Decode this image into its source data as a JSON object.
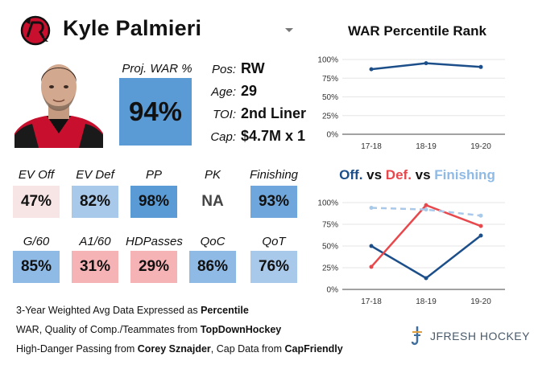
{
  "header": {
    "player_name": "Kyle Palmieri",
    "team_logo_icon": "new-jersey-devils-logo-icon",
    "dropdown_icon": "caret-down-icon"
  },
  "projected_war": {
    "label": "Proj. WAR %",
    "value": "94%",
    "color": "#5b9bd5"
  },
  "info": [
    {
      "label": "Pos:",
      "value": "RW"
    },
    {
      "label": "Age:",
      "value": "29"
    },
    {
      "label": "TOI:",
      "value": "2nd Liner"
    },
    {
      "label": "Cap:",
      "value": "$4.7M x 1"
    }
  ],
  "metrics_row1": [
    {
      "label": "EV Off",
      "value": "47%",
      "color": "#f7e4e4"
    },
    {
      "label": "EV Def",
      "value": "82%",
      "color": "#a9c9ea"
    },
    {
      "label": "PP",
      "value": "98%",
      "color": "#5b9bd5"
    },
    {
      "label": "PK",
      "value": "NA",
      "color": "#ffffff"
    },
    {
      "label": "Finishing",
      "value": "93%",
      "color": "#6fa6db"
    }
  ],
  "metrics_row2": [
    {
      "label": "G/60",
      "value": "85%",
      "color": "#8fbae6"
    },
    {
      "label": "A1/60",
      "value": "31%",
      "color": "#f6b3b6"
    },
    {
      "label": "HDPasses",
      "value": "29%",
      "color": "#f6b3b6"
    },
    {
      "label": "QoC",
      "value": "86%",
      "color": "#8fbae6"
    },
    {
      "label": "QoT",
      "value": "76%",
      "color": "#a9c9ea"
    }
  ],
  "footer": {
    "line1_text": "3-Year Weighted Avg Data Expressed as ",
    "line1_bold": "Percentile",
    "line2_text": "WAR, Quality of Comp./Teammates from ",
    "line2_bold": "TopDownHockey",
    "line3_text1": "High-Danger Passing from ",
    "line3_bold1": "Corey Sznajder",
    "line3_text2": ", Cap Data from ",
    "line3_bold2": "CapFriendly"
  },
  "brand": {
    "name": "JFRESH HOCKEY",
    "icon": "jfresh-hockey-logo-icon"
  },
  "chart_data": [
    {
      "type": "line",
      "title": "WAR Percentile Rank",
      "categories": [
        "17-18",
        "18-19",
        "19-20"
      ],
      "series": [
        {
          "name": "WAR",
          "values": [
            87,
            95,
            90
          ],
          "color": "#1c4f8a",
          "dashed": false
        }
      ],
      "ylim": [
        0,
        100
      ],
      "yticks": [
        "0%",
        "25%",
        "50%",
        "75%",
        "100%"
      ],
      "grid": true
    },
    {
      "type": "line",
      "title_parts": [
        {
          "text": "Off.",
          "color": "#1c4f8a"
        },
        {
          "text": " vs ",
          "color": "#111111"
        },
        {
          "text": "Def.",
          "color": "#e8484c"
        },
        {
          "text": " vs ",
          "color": "#111111"
        },
        {
          "text": "Finishing",
          "color": "#8fbae6"
        }
      ],
      "categories": [
        "17-18",
        "18-19",
        "19-20"
      ],
      "series": [
        {
          "name": "Off.",
          "values": [
            50,
            13,
            62
          ],
          "color": "#1c4f8a",
          "dashed": false
        },
        {
          "name": "Def.",
          "values": [
            26,
            97,
            73
          ],
          "color": "#e8484c",
          "dashed": false
        },
        {
          "name": "Finishing",
          "values": [
            94,
            92,
            85
          ],
          "color": "#a9c9ea",
          "dashed": true
        }
      ],
      "ylim": [
        0,
        100
      ],
      "yticks": [
        "0%",
        "25%",
        "50%",
        "75%",
        "100%"
      ],
      "grid": true
    }
  ]
}
